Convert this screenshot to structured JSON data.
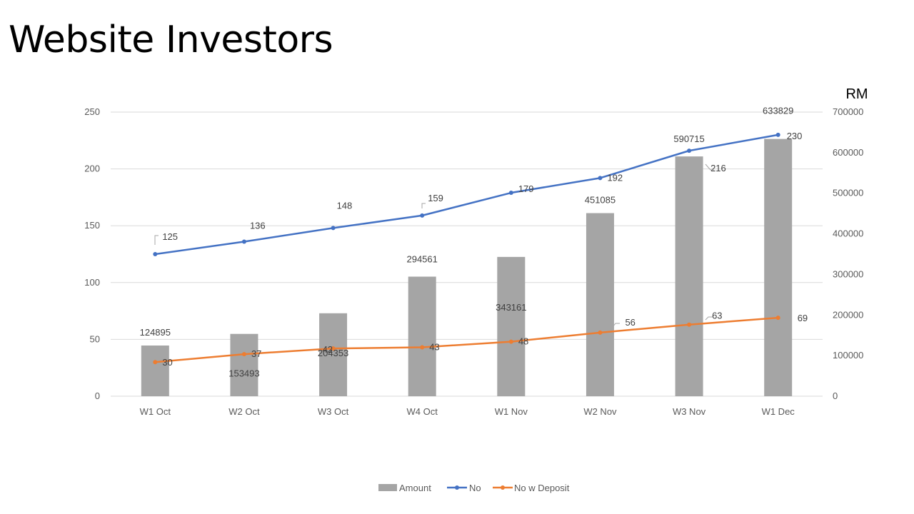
{
  "slide": {
    "title": "Website Investors"
  },
  "chart_data": {
    "type": "bar+line",
    "categories": [
      "W1 Oct",
      "W2 Oct",
      "W3 Oct",
      "W4 Oct",
      "W1 Nov",
      "W2 Nov",
      "W3 Nov",
      "W1 Dec"
    ],
    "series": [
      {
        "name": "Amount",
        "type": "bar",
        "axis": "right",
        "color": "#a5a5a5",
        "values": [
          124895,
          153493,
          204353,
          294561,
          343161,
          451085,
          590715,
          633829
        ]
      },
      {
        "name": "No",
        "type": "line",
        "axis": "left",
        "color": "#4472c4",
        "values": [
          125,
          136,
          148,
          159,
          179,
          192,
          216,
          230
        ]
      },
      {
        "name": "No w Deposit",
        "type": "line",
        "axis": "left",
        "color": "#ed7d31",
        "values": [
          30,
          37,
          42,
          43,
          48,
          56,
          63,
          69
        ]
      }
    ],
    "y_left": {
      "min": 0,
      "max": 250,
      "step": 50,
      "ticks": [
        "0",
        "50",
        "100",
        "150",
        "200",
        "250"
      ]
    },
    "y_right": {
      "min": 0,
      "max": 700000,
      "step": 100000,
      "label": "RM",
      "ticks": [
        "0",
        "100000",
        "200000",
        "300000",
        "400000",
        "500000",
        "600000",
        "700000"
      ]
    },
    "grid": true,
    "legend_position": "bottom"
  }
}
